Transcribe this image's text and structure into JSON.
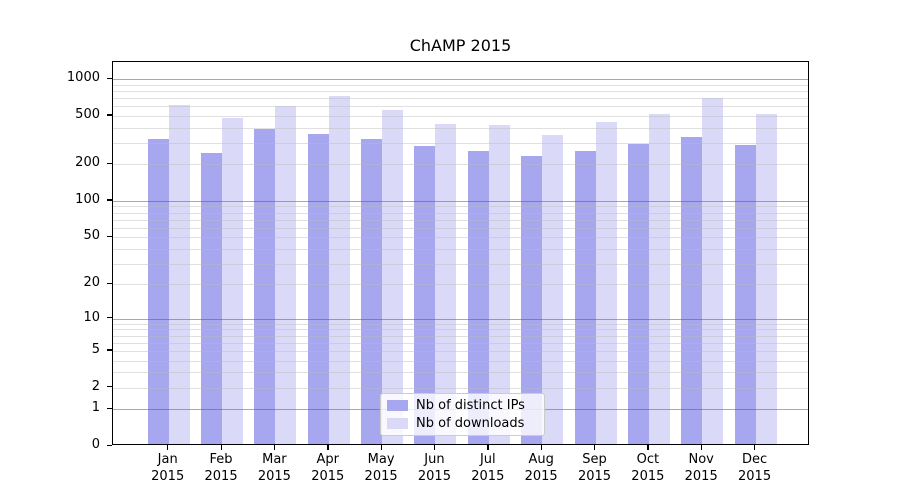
{
  "title": "ChAMP 2015",
  "legend": {
    "items": [
      {
        "label": "Nb of distinct IPs",
        "color": "#a7a7f0"
      },
      {
        "label": "Nb of downloads",
        "color": "#dadaf8"
      }
    ]
  },
  "chart_data": {
    "type": "bar",
    "title": "ChAMP 2015",
    "categories": [
      "Jan 2015",
      "Feb 2015",
      "Mar 2015",
      "Apr 2015",
      "May 2015",
      "Jun 2015",
      "Jul 2015",
      "Aug 2015",
      "Sep 2015",
      "Oct 2015",
      "Nov 2015",
      "Dec 2015"
    ],
    "series": [
      {
        "name": "Nb of distinct IPs",
        "color": "#a7a7f0",
        "values": [
          312,
          238,
          378,
          342,
          309,
          274,
          248,
          225,
          246,
          282,
          325,
          279
        ]
      },
      {
        "name": "Nb of downloads",
        "color": "#dadaf8",
        "values": [
          595,
          463,
          578,
          695,
          535,
          414,
          405,
          332,
          432,
          495,
          670,
          495
        ]
      }
    ],
    "xlabel": "",
    "ylabel": "",
    "yscale": "log1p",
    "ylim": [
      0,
      1330
    ],
    "y_tick_labels": [
      0,
      1,
      2,
      5,
      10,
      20,
      50,
      100,
      200,
      500,
      1000
    ],
    "y_major_gridlines": [
      1,
      10,
      100,
      1000
    ],
    "y_minor_gridlines": [
      2,
      3,
      4,
      5,
      6,
      7,
      8,
      9,
      20,
      30,
      40,
      50,
      60,
      70,
      80,
      90,
      200,
      300,
      400,
      500,
      600,
      700,
      800,
      900
    ],
    "grid": "on",
    "legend_position": "lower center"
  }
}
